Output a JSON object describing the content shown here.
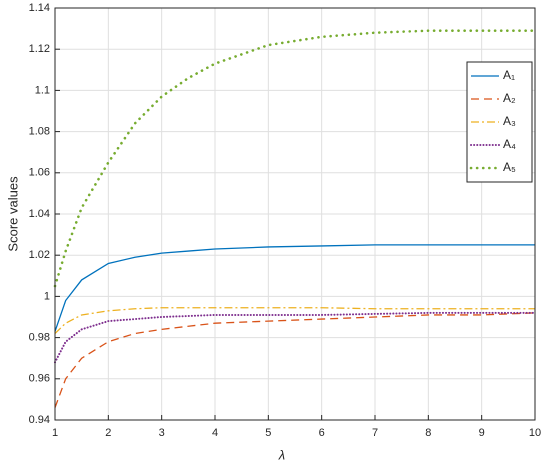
{
  "chart_data": {
    "type": "line",
    "xlabel": "λ",
    "ylabel": "Score values",
    "x": [
      1,
      1.2,
      1.5,
      2,
      2.5,
      3,
      3.5,
      4,
      5,
      6,
      7,
      8,
      9,
      10
    ],
    "series": [
      {
        "name": "A₁",
        "color": "#0072bd",
        "linestyle": "solid",
        "values": [
          0.983,
          0.998,
          1.008,
          1.016,
          1.019,
          1.021,
          1.022,
          1.023,
          1.024,
          1.0245,
          1.025,
          1.025,
          1.025,
          1.025
        ]
      },
      {
        "name": "A₂",
        "color": "#d95319",
        "linestyle": "dashed",
        "values": [
          0.946,
          0.96,
          0.97,
          0.978,
          0.982,
          0.984,
          0.9855,
          0.987,
          0.988,
          0.989,
          0.99,
          0.991,
          0.991,
          0.992
        ]
      },
      {
        "name": "A₃",
        "color": "#edb120",
        "linestyle": "dashdot",
        "values": [
          0.982,
          0.987,
          0.991,
          0.993,
          0.994,
          0.9945,
          0.9945,
          0.9945,
          0.9945,
          0.9945,
          0.994,
          0.994,
          0.994,
          0.994
        ]
      },
      {
        "name": "A₄",
        "color": "#7e2f8e",
        "linestyle": "dotted",
        "values": [
          0.968,
          0.978,
          0.984,
          0.988,
          0.989,
          0.99,
          0.9905,
          0.991,
          0.991,
          0.991,
          0.9915,
          0.992,
          0.992,
          0.992
        ]
      },
      {
        "name": "A₅",
        "color": "#77ac30",
        "linestyle": "points",
        "values": [
          1.005,
          1.022,
          1.043,
          1.065,
          1.084,
          1.097,
          1.106,
          1.113,
          1.122,
          1.126,
          1.128,
          1.129,
          1.129,
          1.129
        ]
      }
    ],
    "xlim": [
      1,
      10
    ],
    "xticks": [
      1,
      2,
      3,
      4,
      5,
      6,
      7,
      8,
      9,
      10
    ],
    "ylim": [
      0.94,
      1.14
    ],
    "yticks": [
      0.94,
      0.96,
      0.98,
      1,
      1.02,
      1.04,
      1.06,
      1.08,
      1.1,
      1.12,
      1.14
    ],
    "grid": true,
    "legend": "upper right"
  }
}
